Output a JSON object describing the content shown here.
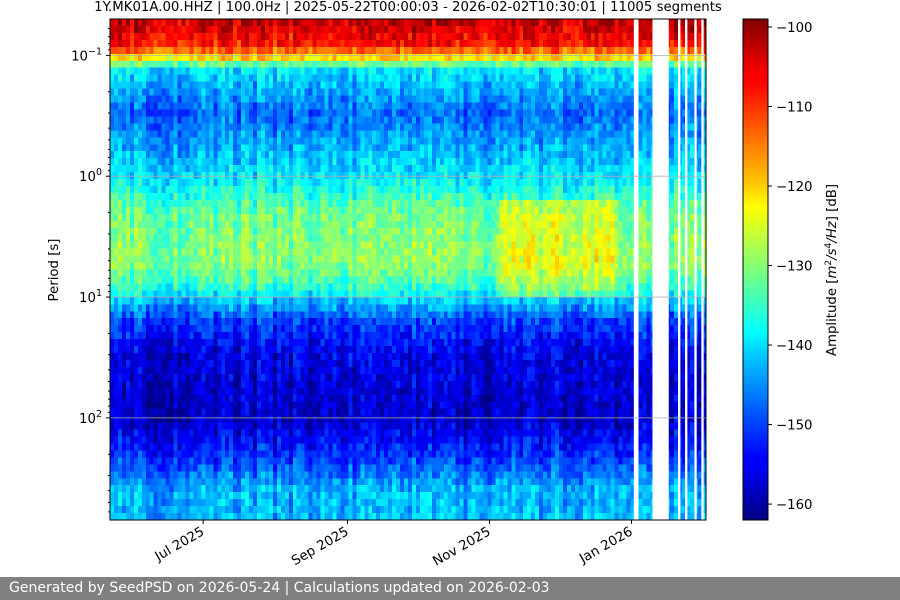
{
  "chart_data": {
    "type": "heatmap",
    "title": "1Y.MK01A.00.HHZ | 100.0Hz | 2025-05-22T00:00:03 - 2026-02-02T10:30:01 | 11005 segments",
    "ylabel": "Period [s]",
    "y_scale": "log",
    "ylim": [
      0.05,
      700
    ],
    "y_ticks": [
      {
        "value": 0.1,
        "base": "10",
        "exp": "−1"
      },
      {
        "value": 1,
        "base": "10",
        "exp": "0"
      },
      {
        "value": 10,
        "base": "10",
        "exp": "1"
      },
      {
        "value": 100,
        "base": "10",
        "exp": "2"
      }
    ],
    "x_range": [
      "2025-05-22",
      "2026-02-02"
    ],
    "x_ticks": [
      {
        "date": "2025-07-01",
        "label": "Jul 2025"
      },
      {
        "date": "2025-09-01",
        "label": "Sep 2025"
      },
      {
        "date": "2025-11-01",
        "label": "Nov 2025"
      },
      {
        "date": "2026-01-01",
        "label": "Jan 2026"
      }
    ],
    "grid": true,
    "colorbar": {
      "label": "Amplitude [m²/s⁴/Hz] [dB]",
      "label_parts": [
        "Amplitude [",
        "m",
        "2",
        "/s",
        "4",
        "/Hz",
        "] [dB]"
      ],
      "range": [
        -162,
        -99
      ],
      "ticks": [
        -100,
        -110,
        -120,
        -130,
        -140,
        -150,
        -160
      ],
      "colormap": "jet"
    },
    "amplitude_profile_by_period": [
      {
        "period_s": 0.05,
        "db": -103
      },
      {
        "period_s": 0.08,
        "db": -108
      },
      {
        "period_s": 0.1,
        "db": -118
      },
      {
        "period_s": 0.13,
        "db": -140
      },
      {
        "period_s": 0.3,
        "db": -148
      },
      {
        "period_s": 1,
        "db": -140
      },
      {
        "period_s": 2,
        "db": -132
      },
      {
        "period_s": 5,
        "db": -130
      },
      {
        "period_s": 8,
        "db": -135
      },
      {
        "period_s": 15,
        "db": -150
      },
      {
        "period_s": 30,
        "db": -156
      },
      {
        "period_s": 100,
        "db": -158
      },
      {
        "period_s": 200,
        "db": -152
      },
      {
        "period_s": 400,
        "db": -143
      }
    ],
    "data_gaps": [
      [
        "2026-01-02",
        "2026-01-04"
      ],
      [
        "2026-01-10",
        "2026-01-17"
      ],
      [
        "2026-01-21",
        "2026-01-22"
      ],
      [
        "2026-01-24",
        "2026-01-25"
      ],
      [
        "2026-01-28",
        "2026-01-29"
      ],
      [
        "2026-01-31",
        "2026-02-01"
      ]
    ]
  },
  "footer": {
    "text": "Generated by SeedPSD on 2026-05-24 | Calculations updated on 2026-02-03"
  }
}
